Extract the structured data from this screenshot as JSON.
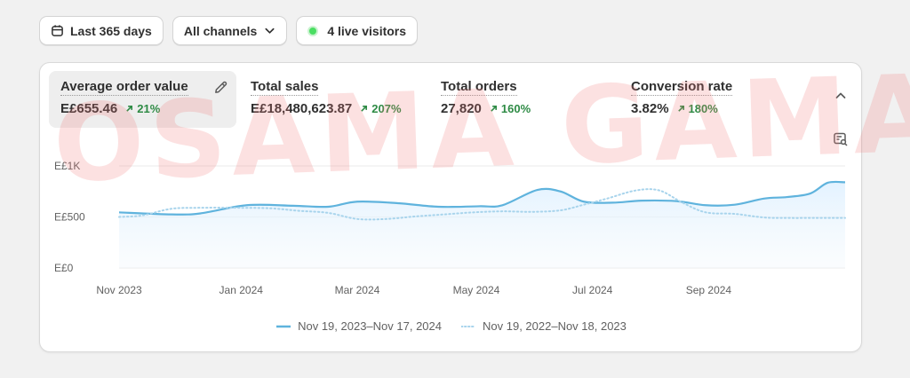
{
  "filters": {
    "date_range": "Last 365 days",
    "channels": "All channels",
    "live_visitors": "4 live visitors"
  },
  "metrics": [
    {
      "label": "Average order value",
      "value": "E£655.46",
      "change": "21%"
    },
    {
      "label": "Total sales",
      "value": "E£18,480,623.87",
      "change": "207%"
    },
    {
      "label": "Total orders",
      "value": "27,820",
      "change": "160%"
    },
    {
      "label": "Conversion rate",
      "value": "3.82%",
      "change": "180%"
    }
  ],
  "watermark": "OSAMA GAMAL",
  "colors": {
    "current": "#5fb3dd",
    "previous": "#a8d4ec",
    "positive": "#2e8b45",
    "live": "#4ade62"
  },
  "icons": {
    "date": "calendar-icon",
    "dropdown": "chevron-down-icon",
    "edit": "pencil-icon",
    "collapse": "chevron-up-icon",
    "tool": "chart-settings-icon"
  },
  "chart_data": {
    "type": "line",
    "y_ticks": [
      {
        "value": 1000,
        "label": "E£1K"
      },
      {
        "value": 500,
        "label": "E£500"
      },
      {
        "value": 0,
        "label": "E£0"
      }
    ],
    "ylim": [
      0,
      1000
    ],
    "xlim": [
      0,
      12.5
    ],
    "x_ticks": [
      {
        "pos": 0,
        "label": "Nov 2023"
      },
      {
        "pos": 2.1,
        "label": "Jan 2024"
      },
      {
        "pos": 4.1,
        "label": "Mar 2024"
      },
      {
        "pos": 6.15,
        "label": "May 2024"
      },
      {
        "pos": 8.15,
        "label": "Jul 2024"
      },
      {
        "pos": 10.15,
        "label": "Sep 2024"
      }
    ],
    "series": [
      {
        "name": "Nov 19, 2023–Nov 17, 2024",
        "style": "solid",
        "x": [
          0,
          0.9,
          1.4,
          2.2,
          3.0,
          3.6,
          4.1,
          4.8,
          5.5,
          6.2,
          6.6,
          7.2,
          7.6,
          8.0,
          8.5,
          9.0,
          9.6,
          10.1,
          10.6,
          11.1,
          11.5,
          11.9,
          12.2,
          12.5
        ],
        "y": [
          545,
          525,
          535,
          615,
          610,
          600,
          650,
          635,
          600,
          605,
          615,
          765,
          750,
          650,
          640,
          660,
          655,
          615,
          620,
          680,
          695,
          730,
          835,
          840
        ]
      },
      {
        "name": "Nov 19, 2022–Nov 18, 2023",
        "style": "dotted",
        "x": [
          0,
          0.4,
          0.9,
          1.4,
          2.0,
          2.6,
          3.1,
          3.6,
          4.1,
          4.6,
          5.1,
          5.6,
          6.1,
          6.6,
          7.1,
          7.6,
          8.0,
          8.4,
          8.9,
          9.3,
          9.7,
          10.1,
          10.6,
          11.1,
          11.5,
          12.0,
          12.5
        ],
        "y": [
          500,
          515,
          580,
          590,
          590,
          585,
          560,
          540,
          480,
          480,
          505,
          525,
          545,
          555,
          550,
          565,
          620,
          680,
          760,
          760,
          640,
          545,
          530,
          495,
          490,
          490,
          490
        ]
      }
    ]
  }
}
